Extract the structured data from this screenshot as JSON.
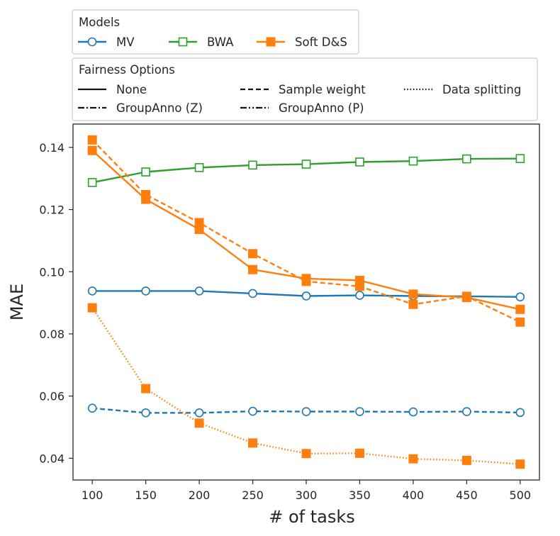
{
  "chart_data": {
    "type": "line",
    "xlabel": "# of tasks",
    "ylabel": "MAE",
    "x": [
      100,
      150,
      200,
      250,
      300,
      350,
      400,
      450,
      500
    ],
    "xticks": [
      "100",
      "150",
      "200",
      "250",
      "300",
      "350",
      "400",
      "450",
      "500"
    ],
    "xlim": [
      82,
      518
    ],
    "ylim": [
      0.033,
      0.1475
    ],
    "yticks": [
      "0.04",
      "0.06",
      "0.08",
      "0.10",
      "0.12",
      "0.14"
    ],
    "ytick_values": [
      0.04,
      0.06,
      0.08,
      0.1,
      0.12,
      0.14
    ],
    "grid": false,
    "legends": [
      {
        "title": "Models",
        "placement": "top-left, above plot",
        "entries": [
          {
            "label": "MV",
            "color": "#1f77b4",
            "marker": "circle-open"
          },
          {
            "label": "BWA",
            "color": "#2ca02c",
            "marker": "square-open"
          },
          {
            "label": "Soft D&S",
            "color": "#ff7f0e",
            "marker": "square-filled"
          }
        ]
      },
      {
        "title": "Fairness Options",
        "placement": "top-left, above plot",
        "entries": [
          {
            "label": "None",
            "dash": "solid"
          },
          {
            "label": "Sample weight",
            "dash": "dashed"
          },
          {
            "label": "Data splitting",
            "dash": "dotted"
          },
          {
            "label": "GroupAnno (Z)",
            "dash": "dashdot"
          },
          {
            "label": "GroupAnno (P)",
            "dash": "dashdotdot"
          }
        ]
      }
    ],
    "series": [
      {
        "model": "MV",
        "option": "None",
        "color": "#1f77b4",
        "marker": "circle-open",
        "dash": "solid",
        "values": [
          0.0938,
          0.0938,
          0.0938,
          0.093,
          0.0922,
          0.0924,
          0.0922,
          0.0921,
          0.0919
        ]
      },
      {
        "model": "MV",
        "option": "Sample weight",
        "color": "#1f77b4",
        "marker": "circle-open",
        "dash": "dashed",
        "values": [
          0.0561,
          0.0546,
          0.0546,
          0.0551,
          0.055,
          0.055,
          0.0549,
          0.055,
          0.0547
        ]
      },
      {
        "model": "BWA",
        "option": "None",
        "color": "#2ca02c",
        "marker": "square-open",
        "dash": "solid",
        "values": [
          0.1287,
          0.1321,
          0.1335,
          0.1343,
          0.1346,
          0.1353,
          0.1356,
          0.1363,
          0.1364
        ]
      },
      {
        "model": "Soft D&S",
        "option": "None",
        "color": "#ff7f0e",
        "marker": "square-filled",
        "dash": "solid",
        "values": [
          0.139,
          0.1233,
          0.1136,
          0.1007,
          0.0978,
          0.0972,
          0.0928,
          0.0917,
          0.0879
        ]
      },
      {
        "model": "Soft D&S",
        "option": "Sample weight",
        "color": "#ff7f0e",
        "marker": "square-filled",
        "dash": "dashed",
        "values": [
          0.1424,
          0.1248,
          0.1158,
          0.1058,
          0.0969,
          0.0953,
          0.0895,
          0.0921,
          0.0838
        ]
      },
      {
        "model": "Soft D&S",
        "option": "Data splitting",
        "color": "#ff7f0e",
        "marker": "square-filled",
        "dash": "dotted",
        "values": [
          0.0884,
          0.0624,
          0.0513,
          0.0449,
          0.0415,
          0.0416,
          0.0398,
          0.0393,
          0.0381
        ]
      }
    ]
  }
}
